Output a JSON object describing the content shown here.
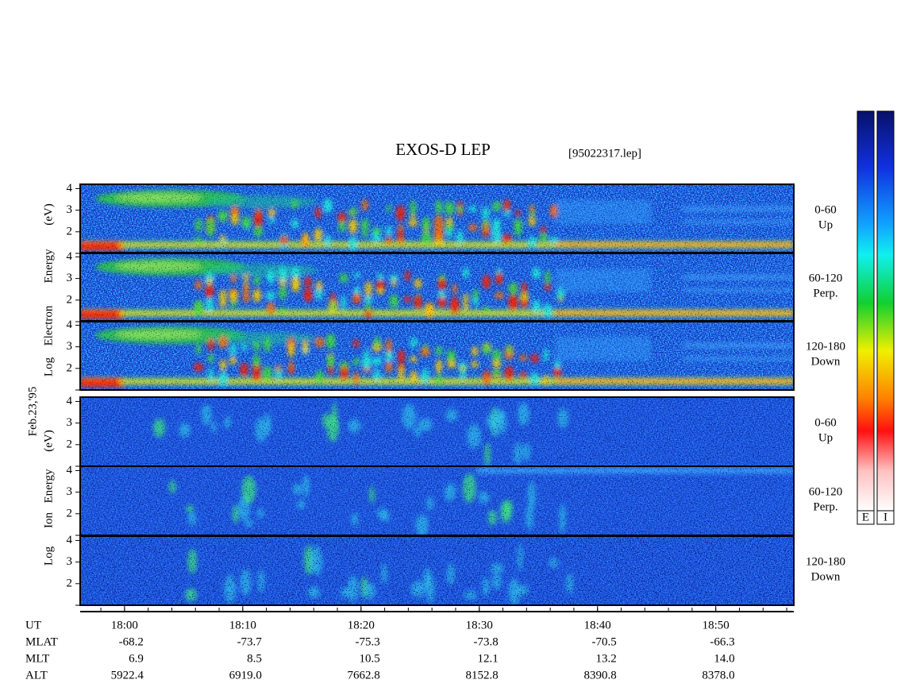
{
  "title": "EXOS-D LEP",
  "file": "[95022317.lep]",
  "date": "Feb.23,'95",
  "electron_axis_words": [
    "Log",
    "Electron",
    "Energy",
    "(eV)"
  ],
  "ion_axis_words": [
    "Log",
    "Ion",
    "Energy",
    "(eV)"
  ],
  "pitch_angle_bins": [
    {
      "angle": "0-60",
      "direction": "Up"
    },
    {
      "angle": "60-120",
      "direction": "Perp."
    },
    {
      "angle": "120-180",
      "direction": "Down"
    }
  ],
  "ylim": [
    1,
    4.2
  ],
  "yticks": [
    2,
    3,
    4
  ],
  "xlim": [
    -3.75,
    56.6
  ],
  "xticks": [
    {
      "value": 0,
      "label": "18:00"
    },
    {
      "value": 10,
      "label": "18:10"
    },
    {
      "value": 20,
      "label": "18:20"
    },
    {
      "value": 30,
      "label": "18:30"
    },
    {
      "value": 40,
      "label": "18:40"
    },
    {
      "value": 50,
      "label": "18:50"
    }
  ],
  "ut_label": "UT",
  "orbit_rows": [
    {
      "name": "MLAT",
      "values": [
        "-68.2",
        "-73.7",
        "-75.3",
        "-73.8",
        "-70.5",
        "-66.3"
      ]
    },
    {
      "name": "MLT",
      "values": [
        "6.9",
        "8.5",
        "10.5",
        "12.1",
        "13.2",
        "14.0"
      ]
    },
    {
      "name": "ALT",
      "values": [
        "5922.4",
        "6919.0",
        "7662.8",
        "8152.8",
        "8390.8",
        "8378.0"
      ]
    }
  ],
  "colorbars": [
    "E",
    "I"
  ]
}
